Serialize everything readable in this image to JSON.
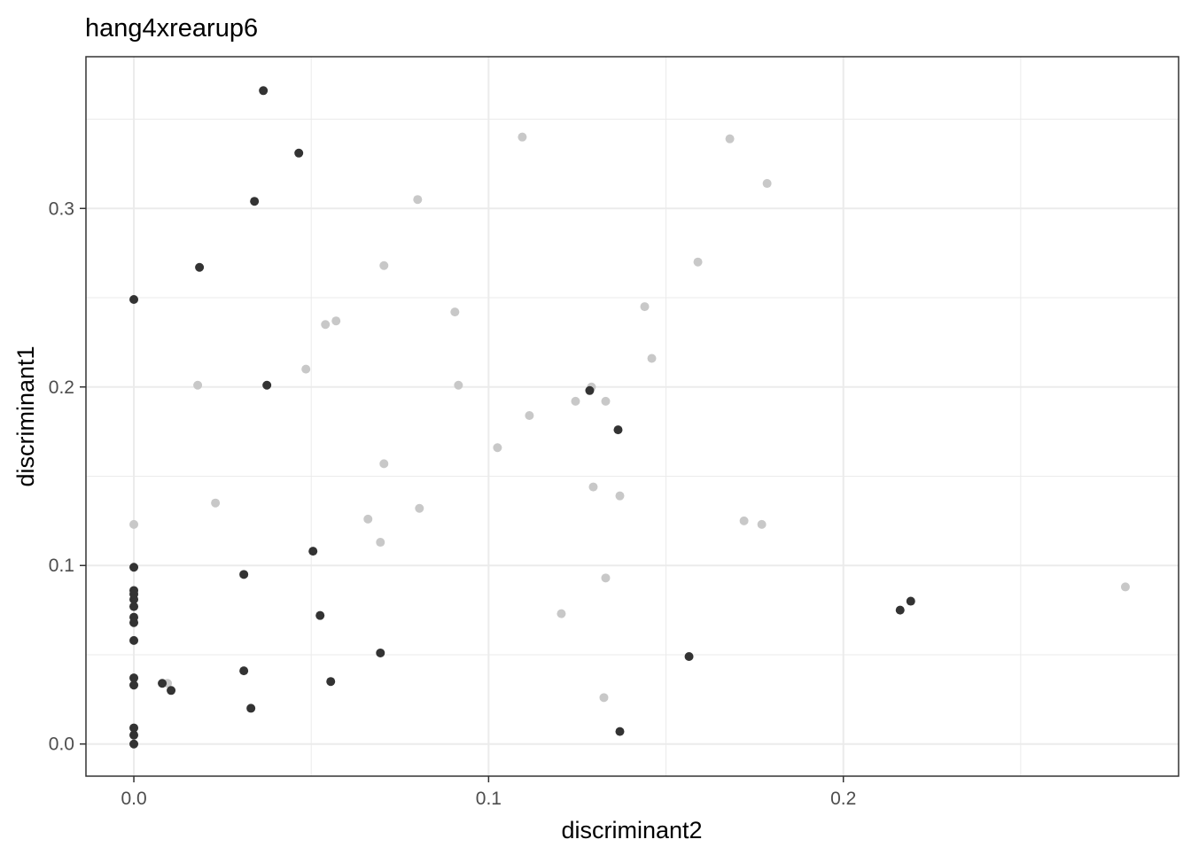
{
  "chart_data": {
    "type": "scatter",
    "title": "hang4xrearup6",
    "xlabel": "discriminant2",
    "ylabel": "discriminant1",
    "xlim": [
      -0.0135,
      0.2945
    ],
    "ylim": [
      -0.018,
      0.385
    ],
    "x_ticks": [
      0.0,
      0.1,
      0.2
    ],
    "x_tick_labels": [
      "0.0",
      "0.1",
      "0.2"
    ],
    "y_ticks": [
      0.0,
      0.1,
      0.2,
      0.3
    ],
    "y_tick_labels": [
      "0.0",
      "0.1",
      "0.2",
      "0.3"
    ],
    "x_minor_gridlines": [
      0.05,
      0.15,
      0.25
    ],
    "y_minor_gridlines": [
      0.05,
      0.15,
      0.25,
      0.35
    ],
    "grid": true,
    "legend": "none",
    "colors": {
      "dark": "#333333",
      "light": "#c8c8c8",
      "grid": "#ebebeb",
      "axis_text": "#4d4d4d"
    },
    "series": [
      {
        "color": "light",
        "points": [
          [
            0.0,
            0.123
          ],
          [
            0.0095,
            0.034
          ],
          [
            0.018,
            0.201
          ],
          [
            0.023,
            0.135
          ],
          [
            0.0485,
            0.21
          ],
          [
            0.054,
            0.235
          ],
          [
            0.057,
            0.237
          ],
          [
            0.066,
            0.126
          ],
          [
            0.0695,
            0.113
          ],
          [
            0.0705,
            0.157
          ],
          [
            0.0705,
            0.268
          ],
          [
            0.08,
            0.305
          ],
          [
            0.0805,
            0.132
          ],
          [
            0.0905,
            0.242
          ],
          [
            0.0915,
            0.201
          ],
          [
            0.1025,
            0.166
          ],
          [
            0.1095,
            0.34
          ],
          [
            0.1115,
            0.184
          ],
          [
            0.1205,
            0.073
          ],
          [
            0.1245,
            0.192
          ],
          [
            0.129,
            0.2
          ],
          [
            0.1295,
            0.144
          ],
          [
            0.1325,
            0.026
          ],
          [
            0.133,
            0.093
          ],
          [
            0.133,
            0.192
          ],
          [
            0.137,
            0.139
          ],
          [
            0.144,
            0.245
          ],
          [
            0.146,
            0.216
          ],
          [
            0.159,
            0.27
          ],
          [
            0.168,
            0.339
          ],
          [
            0.172,
            0.125
          ],
          [
            0.177,
            0.123
          ],
          [
            0.1785,
            0.314
          ],
          [
            0.2795,
            0.088
          ]
        ]
      },
      {
        "color": "dark",
        "points": [
          [
            0.0,
            0.0
          ],
          [
            0.0,
            0.005
          ],
          [
            0.0,
            0.009
          ],
          [
            0.0,
            0.033
          ],
          [
            0.0,
            0.037
          ],
          [
            0.0,
            0.058
          ],
          [
            0.0,
            0.068
          ],
          [
            0.0,
            0.071
          ],
          [
            0.0,
            0.077
          ],
          [
            0.0,
            0.081
          ],
          [
            0.0,
            0.084
          ],
          [
            0.0,
            0.086
          ],
          [
            0.0,
            0.099
          ],
          [
            0.0,
            0.249
          ],
          [
            0.008,
            0.034
          ],
          [
            0.0105,
            0.03
          ],
          [
            0.0185,
            0.267
          ],
          [
            0.031,
            0.041
          ],
          [
            0.031,
            0.095
          ],
          [
            0.033,
            0.02
          ],
          [
            0.034,
            0.304
          ],
          [
            0.0365,
            0.366
          ],
          [
            0.0375,
            0.201
          ],
          [
            0.0465,
            0.331
          ],
          [
            0.0505,
            0.108
          ],
          [
            0.0525,
            0.072
          ],
          [
            0.0555,
            0.035
          ],
          [
            0.0695,
            0.051
          ],
          [
            0.1285,
            0.198
          ],
          [
            0.1365,
            0.176
          ],
          [
            0.137,
            0.007
          ],
          [
            0.1565,
            0.049
          ],
          [
            0.216,
            0.075
          ],
          [
            0.219,
            0.08
          ]
        ]
      }
    ]
  }
}
